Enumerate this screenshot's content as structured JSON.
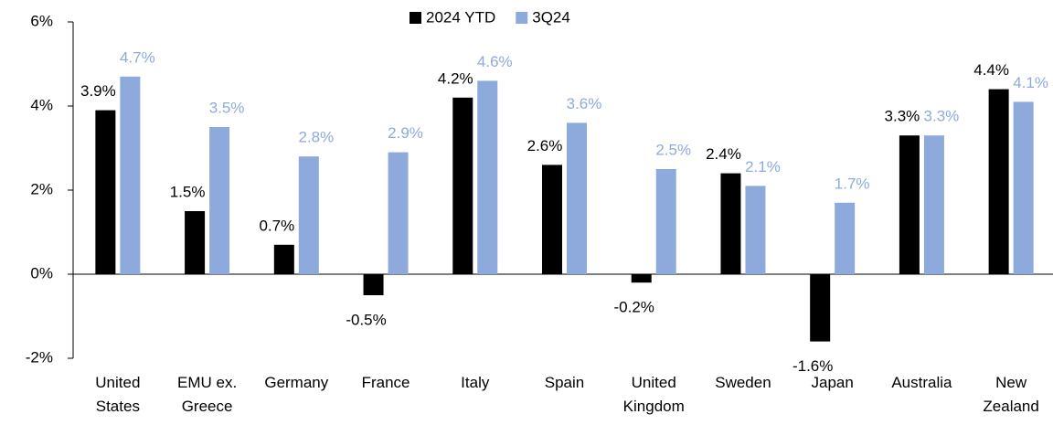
{
  "chart_data": {
    "type": "bar",
    "categories": [
      "United\nStates",
      "EMU ex.\nGreece",
      "Germany",
      "France",
      "Italy",
      "Spain",
      "United\nKingdom",
      "Sweden",
      "Japan",
      "Australia",
      "New\nZealand"
    ],
    "series": [
      {
        "name": "2024 YTD",
        "color": "#000000",
        "label_color": "#000000",
        "values": [
          3.9,
          1.5,
          0.7,
          -0.5,
          4.2,
          2.6,
          -0.2,
          2.4,
          -1.6,
          3.3,
          4.4
        ],
        "value_labels": [
          "3.9%",
          "1.5%",
          "0.7%",
          "-0.5%",
          "4.2%",
          "2.6%",
          "-0.2%",
          "2.4%",
          "-1.6%",
          "3.3%",
          "4.4%"
        ]
      },
      {
        "name": "3Q24",
        "color": "#8eaadc",
        "label_color": "#8eaadc",
        "values": [
          4.7,
          3.5,
          2.8,
          2.9,
          4.6,
          3.6,
          2.5,
          2.1,
          1.7,
          3.3,
          4.1
        ],
        "value_labels": [
          "4.7%",
          "3.5%",
          "2.8%",
          "2.9%",
          "4.6%",
          "3.6%",
          "2.5%",
          "2.1%",
          "1.7%",
          "3.3%",
          "4.1%"
        ]
      }
    ],
    "ylim": [
      -2,
      6
    ],
    "yticks": [
      {
        "value": -2,
        "label": "-2%"
      },
      {
        "value": 0,
        "label": "0%"
      },
      {
        "value": 2,
        "label": "2%"
      },
      {
        "value": 4,
        "label": "4%"
      },
      {
        "value": 6,
        "label": "6%"
      }
    ],
    "legend": "top"
  }
}
